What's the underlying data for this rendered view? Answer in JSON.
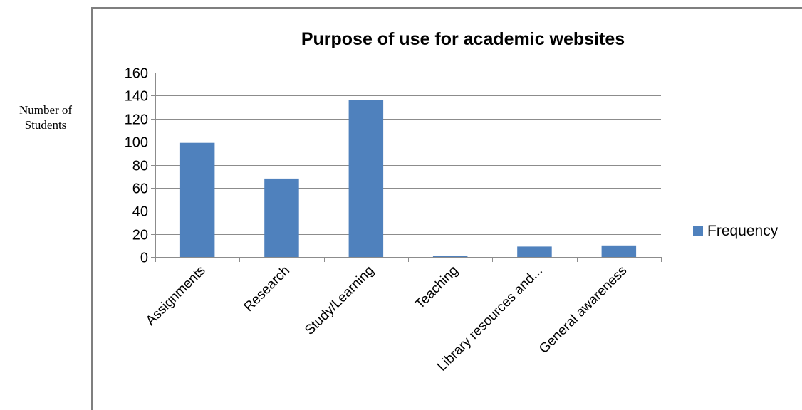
{
  "chart_data": {
    "type": "bar",
    "title": "Purpose of use for academic websites",
    "ylabel_lines": [
      "Number of",
      "Students"
    ],
    "xlabel": "",
    "categories": [
      "Assignments",
      "Research",
      "Study/Learning",
      "Teaching",
      "Library resources and...",
      "General awareness"
    ],
    "series": [
      {
        "name": "Frequency",
        "values": [
          99,
          68,
          136,
          1,
          9,
          10
        ],
        "color": "#4f81bd"
      }
    ],
    "ylim": [
      0,
      160
    ],
    "yticks": [
      0,
      20,
      40,
      60,
      80,
      100,
      120,
      140,
      160
    ],
    "grid": true,
    "legend_position": "right"
  }
}
